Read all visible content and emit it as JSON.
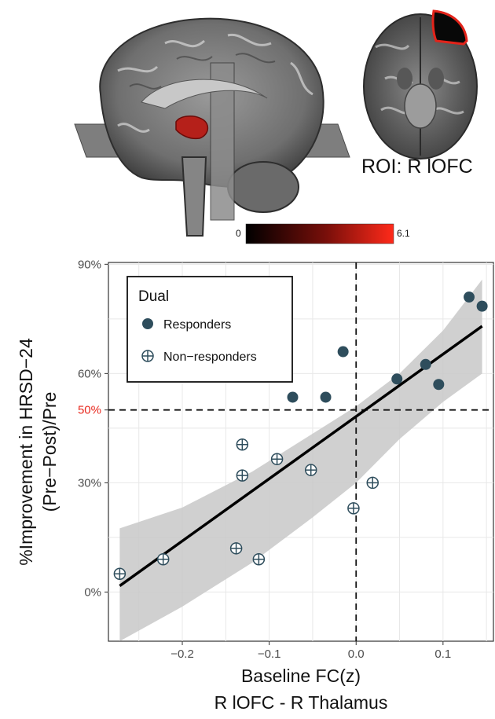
{
  "brain_panel": {
    "roi_label": "ROI: R lOFC",
    "colorbar": {
      "min_label": "0",
      "max_label": "6.1",
      "low_color": "#000000",
      "high_color": "#ff2a1a"
    }
  },
  "chart_data": {
    "type": "scatter",
    "xlabel_line1": "Baseline FC(z)",
    "xlabel_line2": "R lOFC - R Thalamus",
    "ylabel_line1": "%Improvement in HRSD−24",
    "ylabel_line2": "(Pre−Post)/Pre",
    "xlim": [
      -0.285,
      0.158
    ],
    "ylim": [
      -0.135,
      0.905
    ],
    "x_ticks": [
      {
        "value": -0.2,
        "label": "−0.2"
      },
      {
        "value": -0.1,
        "label": "−0.1"
      },
      {
        "value": 0.0,
        "label": "0.0"
      },
      {
        "value": 0.1,
        "label": "0.1"
      }
    ],
    "y_ticks": [
      {
        "value": 0.0,
        "label": "0%"
      },
      {
        "value": 0.3,
        "label": "30%"
      },
      {
        "value": 0.5,
        "label": "50%",
        "highlight": true
      },
      {
        "value": 0.6,
        "label": "60%"
      },
      {
        "value": 0.9,
        "label": "90%"
      }
    ],
    "grid": true,
    "hline": {
      "y": 0.5,
      "style": "dashed"
    },
    "vline": {
      "x": 0.0,
      "style": "dashed"
    },
    "legend": {
      "title": "Dual",
      "placement": "top-left",
      "entries": [
        {
          "label": "Responders",
          "marker": "filled-circle"
        },
        {
          "label": "Non−responders",
          "marker": "circle-plus"
        }
      ]
    },
    "series": [
      {
        "name": "Responders",
        "marker": "filled-circle",
        "color": "#2e4d5c",
        "points": [
          {
            "x": -0.073,
            "y": 0.535
          },
          {
            "x": -0.035,
            "y": 0.535
          },
          {
            "x": -0.015,
            "y": 0.66
          },
          {
            "x": 0.047,
            "y": 0.585
          },
          {
            "x": 0.08,
            "y": 0.625
          },
          {
            "x": 0.095,
            "y": 0.57
          },
          {
            "x": 0.13,
            "y": 0.81
          },
          {
            "x": 0.145,
            "y": 0.785
          }
        ]
      },
      {
        "name": "Non−responders",
        "marker": "circle-plus",
        "color": "#2e4d5c",
        "points": [
          {
            "x": -0.272,
            "y": 0.05
          },
          {
            "x": -0.222,
            "y": 0.09
          },
          {
            "x": -0.138,
            "y": 0.12
          },
          {
            "x": -0.131,
            "y": 0.405
          },
          {
            "x": -0.131,
            "y": 0.32
          },
          {
            "x": -0.112,
            "y": 0.09
          },
          {
            "x": -0.091,
            "y": 0.365
          },
          {
            "x": -0.052,
            "y": 0.335
          },
          {
            "x": -0.003,
            "y": 0.23
          },
          {
            "x": 0.019,
            "y": 0.3
          }
        ]
      }
    ],
    "fit_line": {
      "x": [
        -0.272,
        0.145
      ],
      "y": [
        0.017,
        0.73
      ]
    },
    "confidence_band": {
      "x": [
        -0.272,
        -0.2,
        -0.12,
        -0.05,
        0.0,
        0.05,
        0.1,
        0.145
      ],
      "upper": [
        0.175,
        0.232,
        0.33,
        0.435,
        0.51,
        0.6,
        0.718,
        0.858
      ],
      "lower": [
        -0.135,
        -0.04,
        0.08,
        0.205,
        0.3,
        0.42,
        0.522,
        0.6
      ]
    },
    "colors": {
      "band": "#c8c8c8",
      "line": "#000000",
      "grid": "#e8e8e8",
      "highlight_tick": "#e8281e"
    }
  }
}
